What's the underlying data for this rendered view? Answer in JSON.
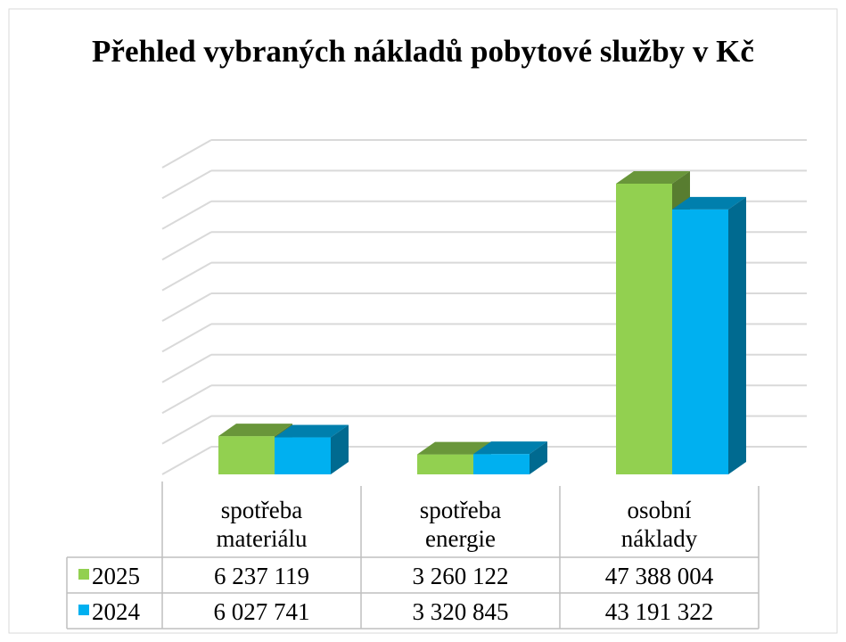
{
  "chart_data": {
    "type": "bar3d",
    "title": "Přehled vybraných nákladů pobytové služby v Kč",
    "categories": [
      "spotřeba materiálu",
      "spotřeba energie",
      "osobní náklady"
    ],
    "series": [
      {
        "name": "2025",
        "color": "#92d050",
        "values": [
          6237119,
          3260122,
          47388004
        ],
        "value_labels": [
          "6 237 119",
          "3 260 122",
          "47 388 004"
        ]
      },
      {
        "name": "2024",
        "color": "#00b0f0",
        "values": [
          6027741,
          3320845,
          43191322
        ],
        "value_labels": [
          "6 027 741",
          "3 320 845",
          "43 191 322"
        ]
      }
    ],
    "ylim": [
      0,
      50000000
    ],
    "yticks": [
      0,
      5000000,
      10000000,
      15000000,
      20000000,
      25000000,
      30000000,
      35000000,
      40000000,
      45000000,
      50000000
    ],
    "grid": true,
    "legend": "table"
  }
}
